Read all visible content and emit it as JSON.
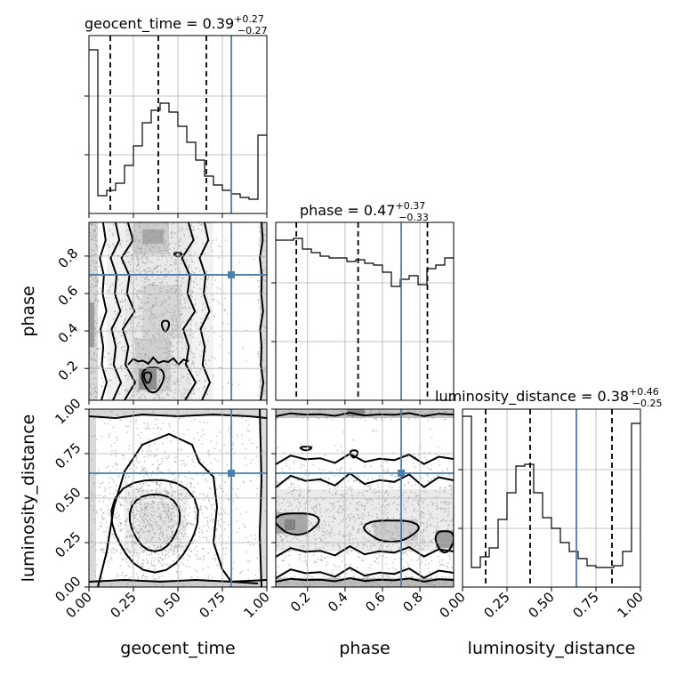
{
  "chart_data": {
    "type": "corner",
    "parameters": [
      "geocent_time",
      "phase",
      "luminosity_distance"
    ],
    "colors": {
      "truth": "#4a7fb0",
      "hist": "#000000",
      "contour": "#000000"
    },
    "titles": [
      {
        "name": "geocent_time",
        "median": "0.39",
        "plus": "+0.27",
        "minus": "−0.27"
      },
      {
        "name": "phase",
        "median": "0.47",
        "plus": "+0.37",
        "minus": "−0.33"
      },
      {
        "name": "luminosity_distance",
        "median": "0.38",
        "plus": "+0.46",
        "minus": "−0.25"
      }
    ],
    "ranges": {
      "geocent_time": [
        0,
        1
      ],
      "phase": [
        0.03,
        0.98
      ],
      "luminosity_distance": [
        0,
        1
      ]
    },
    "tick_labels": {
      "geocent_time": [
        "0.00",
        "0.25",
        "0.50",
        "0.75",
        "1.00"
      ],
      "phase": [
        "0.2",
        "0.4",
        "0.6",
        "0.8"
      ],
      "luminosity_distance": [
        "0.00",
        "0.25",
        "0.50",
        "0.75",
        "1.00"
      ]
    },
    "truths": {
      "geocent_time": 0.8,
      "phase": 0.7,
      "luminosity_distance": 0.64
    },
    "quantiles": {
      "geocent_time": [
        0.12,
        0.39,
        0.66
      ],
      "phase": [
        0.14,
        0.47,
        0.84
      ],
      "luminosity_distance": [
        0.13,
        0.38,
        0.84
      ]
    },
    "histograms": {
      "geocent_time": {
        "bins": 20,
        "values": [
          0.92,
          0.1,
          0.13,
          0.17,
          0.27,
          0.38,
          0.51,
          0.58,
          0.62,
          0.57,
          0.49,
          0.4,
          0.3,
          0.21,
          0.16,
          0.13,
          0.11,
          0.09,
          0.08,
          0.44
        ]
      },
      "phase": {
        "bins": 20,
        "values": [
          0.9,
          0.9,
          0.91,
          0.85,
          0.83,
          0.81,
          0.8,
          0.8,
          0.78,
          0.79,
          0.77,
          0.76,
          0.72,
          0.64,
          0.68,
          0.7,
          0.65,
          0.74,
          0.76,
          0.8
        ]
      },
      "luminosity_distance": {
        "bins": 20,
        "values": [
          0.96,
          0.11,
          0.17,
          0.22,
          0.38,
          0.53,
          0.68,
          0.69,
          0.53,
          0.39,
          0.33,
          0.25,
          0.2,
          0.16,
          0.12,
          0.11,
          0.11,
          0.12,
          0.2,
          0.92
        ]
      }
    }
  }
}
